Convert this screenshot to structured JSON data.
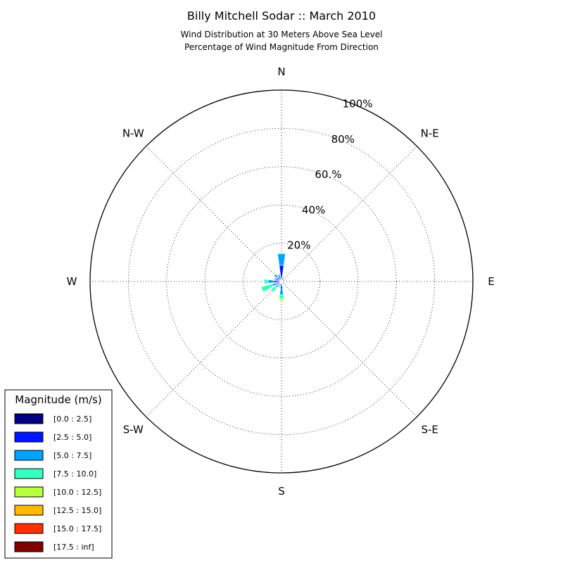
{
  "chart_data": {
    "type": "windrose",
    "title": "Billy Mitchell Sodar :: March 2010",
    "subtitle_lines": [
      "Wind Distribution at 30 Meters Above Sea Level",
      "Percentage of Wind Magnitude From Direction"
    ],
    "directions": [
      "N",
      "N-E",
      "E",
      "S-E",
      "S",
      "S-W",
      "W",
      "N-W"
    ],
    "radial_ticks": [
      "20%",
      "40%",
      "60.%",
      "80%",
      "100%"
    ],
    "radial_max": 100,
    "grid": true,
    "legend": {
      "title": "Magnitude (m/s)",
      "placement": "bottom-left",
      "bins": [
        {
          "label": "[0.0 : 2.5]",
          "color": "#000080"
        },
        {
          "label": "[2.5 : 5.0]",
          "color": "#0014ff"
        },
        {
          "label": "[5.0 : 7.5]",
          "color": "#00a4ff"
        },
        {
          "label": "[7.5 : 10.0]",
          "color": "#36ffc1"
        },
        {
          "label": "[10.0 : 12.5]",
          "color": "#b7ff3f"
        },
        {
          "label": "[12.5 : 15.0]",
          "color": "#ffb900"
        },
        {
          "label": "[15.0 : 17.5]",
          "color": "#ff3000"
        },
        {
          "label": "[17.5 : inf]",
          "color": "#800000"
        }
      ]
    },
    "sectors": [
      {
        "direction_deg": 0,
        "values": [
          1.5,
          7.0,
          6.0,
          0.5,
          0,
          0,
          0,
          0
        ]
      },
      {
        "direction_deg": 22.5,
        "values": [
          1.0,
          1.0,
          0.5,
          0,
          0,
          0,
          0,
          0
        ]
      },
      {
        "direction_deg": 45,
        "values": [
          0.5,
          0.5,
          0,
          0,
          0,
          0,
          0,
          0
        ]
      },
      {
        "direction_deg": 67.5,
        "values": [
          0.5,
          1.0,
          0.5,
          0,
          0,
          0,
          0,
          0
        ]
      },
      {
        "direction_deg": 90,
        "values": [
          0.5,
          0.5,
          0,
          0,
          0,
          0,
          0,
          0
        ]
      },
      {
        "direction_deg": 112.5,
        "values": [
          0.5,
          0.5,
          0,
          0,
          0,
          0,
          0,
          0
        ]
      },
      {
        "direction_deg": 135,
        "values": [
          0.5,
          0.5,
          0,
          0,
          0,
          0,
          0,
          0
        ]
      },
      {
        "direction_deg": 157.5,
        "values": [
          0.5,
          0.5,
          0.5,
          0,
          0,
          0,
          0,
          0
        ]
      },
      {
        "direction_deg": 180,
        "values": [
          1.0,
          3.0,
          3.0,
          2.0,
          1.0,
          0,
          0,
          0
        ]
      },
      {
        "direction_deg": 202.5,
        "values": [
          0.5,
          1.0,
          1.0,
          1.0,
          0,
          0,
          0,
          0
        ]
      },
      {
        "direction_deg": 225,
        "values": [
          1.0,
          1.0,
          2.0,
          3.0,
          0.5,
          0,
          0,
          0
        ]
      },
      {
        "direction_deg": 247.5,
        "values": [
          1.0,
          1.5,
          2.5,
          6.0,
          0,
          0,
          0,
          0
        ]
      },
      {
        "direction_deg": 270,
        "values": [
          1.0,
          3.0,
          3.0,
          2.0,
          0,
          0,
          0,
          0
        ]
      },
      {
        "direction_deg": 292.5,
        "values": [
          1.0,
          2.0,
          1.0,
          0,
          0,
          0,
          0,
          0
        ]
      },
      {
        "direction_deg": 315,
        "values": [
          1.0,
          2.0,
          2.0,
          0,
          0,
          0,
          0,
          0
        ]
      },
      {
        "direction_deg": 337.5,
        "values": [
          1.0,
          2.0,
          1.0,
          0,
          0,
          0,
          0,
          0
        ]
      }
    ]
  }
}
